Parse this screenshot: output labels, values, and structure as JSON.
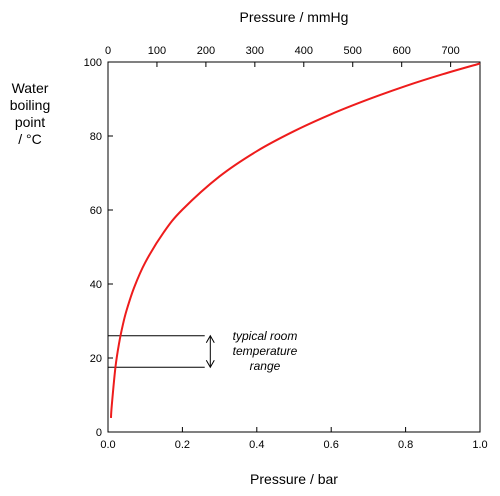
{
  "chart_data": {
    "type": "line",
    "xlabel": "Pressure / bar",
    "x2label": "Pressure / mmHg",
    "ylabel_lines": [
      "Water",
      "boiling",
      "point",
      "/ °C"
    ],
    "xlim": [
      0,
      1.0
    ],
    "ylim": [
      0,
      100
    ],
    "x2lim": [
      0,
      760
    ],
    "xticks": [
      "0.0",
      "0.2",
      "0.4",
      "0.6",
      "0.8",
      "1.0"
    ],
    "x2ticks": [
      "0",
      "100",
      "200",
      "300",
      "400",
      "500",
      "600",
      "700"
    ],
    "yticks": [
      "0",
      "20",
      "40",
      "60",
      "80",
      "100"
    ],
    "grid": false,
    "series": [
      {
        "color": "#ee1c1c",
        "x": [
          0.008,
          0.01,
          0.02,
          0.03,
          0.04,
          0.05,
          0.07,
          0.1,
          0.15,
          0.2,
          0.3,
          0.4,
          0.5,
          0.6,
          0.7,
          0.8,
          0.9,
          1.0
        ],
        "y": [
          3.8,
          7.0,
          17.5,
          24.1,
          29.0,
          32.9,
          39.0,
          45.8,
          54.0,
          60.1,
          69.1,
          75.9,
          81.3,
          85.9,
          89.9,
          93.5,
          96.7,
          99.6
        ]
      }
    ],
    "reference_lines": [
      {
        "y": 26,
        "x_end": 0.26
      },
      {
        "y": 17.5,
        "x_end": 0.26
      }
    ],
    "annotation": {
      "lines": [
        "typical room",
        "temperature",
        "range"
      ],
      "arrow_from": 17.5,
      "arrow_to": 26,
      "arrow_x": 0.275
    }
  }
}
